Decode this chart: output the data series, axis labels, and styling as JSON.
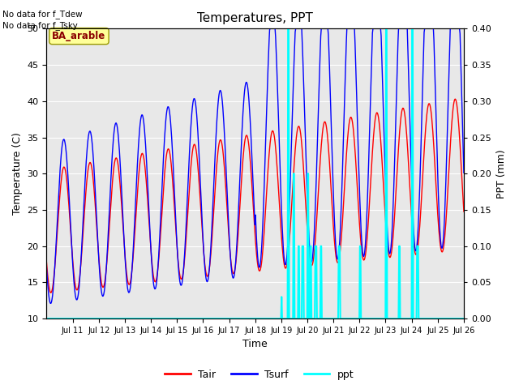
{
  "title": "Temperatures, PPT",
  "xlabel": "Time",
  "ylabel_left": "Temperature (C)",
  "ylabel_right": "PPT (mm)",
  "text_no_data": [
    "No data for f_Tdew",
    "No data for f_Tsky"
  ],
  "legend_labels": [
    "Tair",
    "Tsurf",
    "ppt"
  ],
  "legend_colors": [
    "#ff0000",
    "#0000ff",
    "#00ffff"
  ],
  "site_label": "BA_arable",
  "ylim_left": [
    10,
    50
  ],
  "ylim_right": [
    0.0,
    0.4
  ],
  "yticks_left": [
    10,
    15,
    20,
    25,
    30,
    35,
    40,
    45,
    50
  ],
  "yticks_right": [
    0.0,
    0.05,
    0.1,
    0.15,
    0.2,
    0.25,
    0.3,
    0.35,
    0.4
  ],
  "xtick_labels": [
    "Jul 11",
    "Jul 12",
    "Jul 13",
    "Jul 14",
    "Jul 15",
    "Jul 16",
    "Jul 17",
    "Jul 18",
    "Jul 19",
    "Jul 20",
    "Jul 21",
    "Jul 22",
    "Jul 23",
    "Jul 24",
    "Jul 25",
    "Jul 26"
  ],
  "background_color": "#e8e8e8",
  "tair_color": "#ff0000",
  "tsurf_color": "#0000ff",
  "ppt_color": "#00ffff",
  "tair_lw": 1.0,
  "tsurf_lw": 1.0,
  "ppt_lw": 1.5
}
